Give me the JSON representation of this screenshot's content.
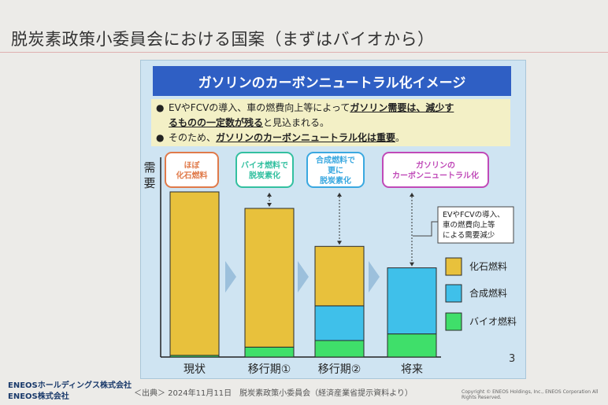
{
  "slide": {
    "title": "脱炭素政策小委員会における国案（まずはバイオから）",
    "banner": "ガソリンのカーボンニュートラル化イメージ",
    "bullets": {
      "b1_pre": "EVやFCVの導入、車の燃費向上等によって",
      "b1_strong": "ガソリン需要は、減少す",
      "b1_strong2": "るものの一定数が残る",
      "b1_post": "と見込まれる。",
      "b2_pre": "そのため、",
      "b2_strong": "ガソリンのカーボンニュートラル化は重要",
      "b2_post": "。",
      "marker": "●"
    },
    "page_number": "3"
  },
  "footer": {
    "logo_line1": "ENEOSホールディングス株式会社",
    "logo_line2": "ENEOS株式会社",
    "citation": "＜出典＞ 2024年11月11日　脱炭素政策小委員会（経済産業省提示資料より）",
    "copyright": "Copyright © ENEOS Holdings, Inc., ENEOS Corporation All Rights Reserved."
  },
  "chart_data": {
    "type": "bar",
    "stacked": true,
    "ylabel": "需要",
    "categories": [
      "現状",
      "移行期①",
      "移行期②",
      "将来"
    ],
    "series": [
      {
        "name": "バイオ燃料",
        "color": "#3fdf6a",
        "values": [
          1,
          6,
          10,
          14
        ]
      },
      {
        "name": "合成燃料",
        "color": "#3fc0ea",
        "values": [
          0,
          0,
          21,
          40
        ]
      },
      {
        "name": "化石燃料",
        "color": "#e8c13c",
        "values": [
          99,
          84,
          36,
          0
        ]
      }
    ],
    "ylim": [
      0,
      100
    ],
    "stage_labels": [
      {
        "lines": [
          "ほぼ",
          "化石燃料"
        ],
        "color": "#e07a4a"
      },
      {
        "lines": [
          "バイオ燃料で",
          "脱炭素化"
        ],
        "color": "#33c0a0"
      },
      {
        "lines": [
          "合成燃料で",
          "更に",
          "脱炭素化"
        ],
        "color": "#3aa8e0"
      },
      {
        "lines": [
          "ガソリンの",
          "カーボンニュートラル化"
        ],
        "color": "#c04ab8"
      }
    ],
    "annotation": [
      "EVやFCVの導入、",
      "車の燃費向上等",
      "による需要減少"
    ],
    "legend": [
      "化石燃料",
      "合成燃料",
      "バイオ燃料"
    ],
    "legend_position": "right"
  }
}
